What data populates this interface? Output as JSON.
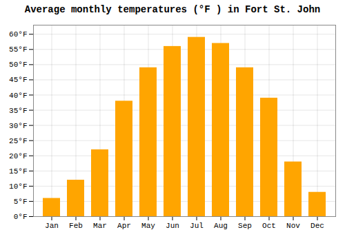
{
  "chart_data": {
    "type": "bar",
    "title": "Average monthly temperatures (°F ) in Fort St. John",
    "categories": [
      "Jan",
      "Feb",
      "Mar",
      "Apr",
      "May",
      "Jun",
      "Jul",
      "Aug",
      "Sep",
      "Oct",
      "Nov",
      "Dec"
    ],
    "values": [
      6,
      12,
      22,
      38,
      49,
      56,
      59,
      57,
      49,
      39,
      18,
      8
    ],
    "color": "#FFA500",
    "ylim": [
      0,
      63
    ],
    "yticks": [
      {
        "value": 0,
        "label": "0°F"
      },
      {
        "value": 5,
        "label": "5°F"
      },
      {
        "value": 10,
        "label": "10°F"
      },
      {
        "value": 15,
        "label": "15°F"
      },
      {
        "value": 20,
        "label": "20°F"
      },
      {
        "value": 25,
        "label": "25°F"
      },
      {
        "value": 30,
        "label": "30°F"
      },
      {
        "value": 35,
        "label": "35°F"
      },
      {
        "value": 40,
        "label": "40°F"
      },
      {
        "value": 45,
        "label": "45°F"
      },
      {
        "value": 50,
        "label": "50°F"
      },
      {
        "value": 55,
        "label": "55°F"
      },
      {
        "value": 60,
        "label": "60°F"
      }
    ],
    "grid": true
  }
}
